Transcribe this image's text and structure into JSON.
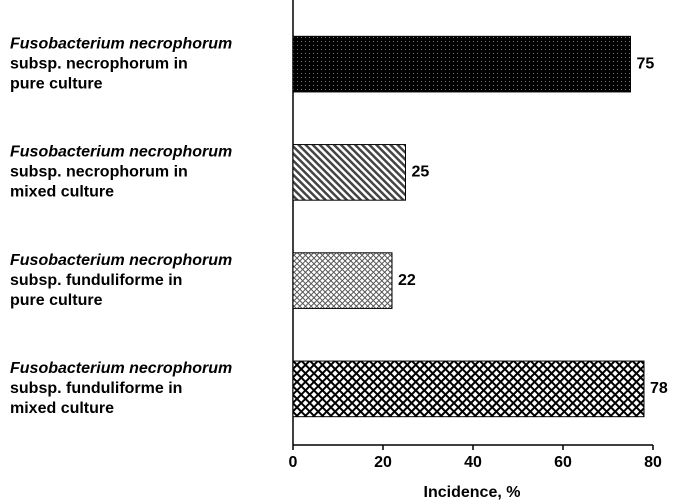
{
  "chart_data": {
    "type": "barh",
    "categories": [
      [
        "Fusobacterium necrophorum",
        "subsp. necrophorum in",
        "pure culture"
      ],
      [
        "Fusobacterium necrophorum",
        "subsp. necrophorum in",
        "mixed culture"
      ],
      [
        "Fusobacterium necrophorum",
        "subsp. funduliforme in",
        "pure culture"
      ],
      [
        "Fusobacterium necrophorum",
        "subsp. funduliforme in",
        "mixed culture"
      ]
    ],
    "values": [
      75,
      25,
      22,
      78
    ],
    "xlabel": "Incidence, %",
    "xlim": [
      0,
      80
    ],
    "xticks": [
      0,
      20,
      40,
      60,
      80
    ]
  }
}
